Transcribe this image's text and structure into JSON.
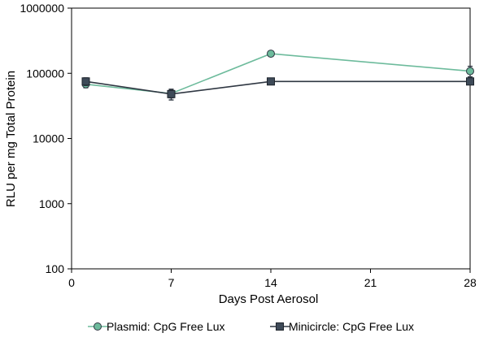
{
  "chart_data": {
    "type": "line",
    "title": "",
    "xlabel": "Days Post Aerosol",
    "ylabel": "RLU per mg Total Protein",
    "x_scale": "linear",
    "y_scale": "log",
    "xlim": [
      0,
      28
    ],
    "ylim": [
      100,
      1000000
    ],
    "x_ticks": [
      0,
      7,
      14,
      21,
      28
    ],
    "x_tick_labels": [
      "0",
      "7",
      "14",
      "21",
      "28"
    ],
    "y_ticks": [
      100,
      1000,
      10000,
      100000,
      1000000
    ],
    "y_tick_labels": [
      "100",
      "1000",
      "10000",
      "100000",
      "1000000"
    ],
    "grid": false,
    "legend_position": "bottom",
    "series": [
      {
        "name": "Plasmid: CpG Free Lux",
        "marker": "circle",
        "color": "#6dbb9c",
        "marker_fill": "#6dbb9c",
        "x": [
          1,
          7,
          14,
          28
        ],
        "y": [
          68000,
          49000,
          200000,
          108000
        ],
        "error": [
          8000,
          7000,
          15000,
          20000
        ]
      },
      {
        "name": "Minicircle: CpG Free Lux",
        "marker": "square",
        "color": "#2f3742",
        "marker_fill": "#3e4a58",
        "x": [
          1,
          7,
          14,
          28
        ],
        "y": [
          75000,
          48000,
          75000,
          75000
        ],
        "error": [
          10000,
          9000,
          6000,
          6000
        ]
      }
    ]
  }
}
